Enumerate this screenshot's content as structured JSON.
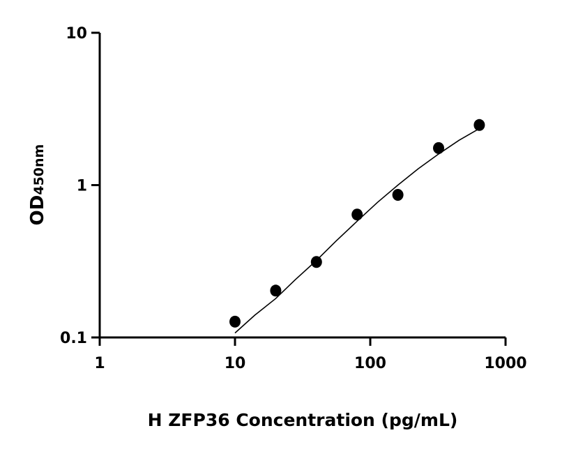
{
  "chart_data": {
    "type": "scatter",
    "title": "",
    "xlabel": "H ZFP36 Concentration (pg/mL)",
    "ylabel_main": "OD",
    "ylabel_sub": "450nm",
    "x_scale": "log",
    "y_scale": "log",
    "xlim": [
      1,
      1000
    ],
    "ylim": [
      0.1,
      10
    ],
    "x_ticks": [
      1,
      10,
      100,
      1000
    ],
    "x_tick_labels": [
      "1",
      "10",
      "100",
      "1000"
    ],
    "y_ticks": [
      0.1,
      1,
      10
    ],
    "y_tick_labels": [
      "0.1",
      "1",
      "10"
    ],
    "grid": false,
    "marker_color": "#000000",
    "points": {
      "x": [
        10,
        20,
        40,
        80,
        160,
        320,
        640
      ],
      "y": [
        0.127,
        0.203,
        0.313,
        0.641,
        0.863,
        1.75,
        2.48
      ]
    },
    "fit_curve": {
      "x": [
        10,
        14,
        20,
        28,
        40,
        56,
        80,
        113,
        160,
        226,
        320,
        453,
        640
      ],
      "y": [
        0.107,
        0.14,
        0.18,
        0.24,
        0.32,
        0.43,
        0.58,
        0.77,
        1.0,
        1.28,
        1.6,
        1.97,
        2.35
      ]
    }
  }
}
